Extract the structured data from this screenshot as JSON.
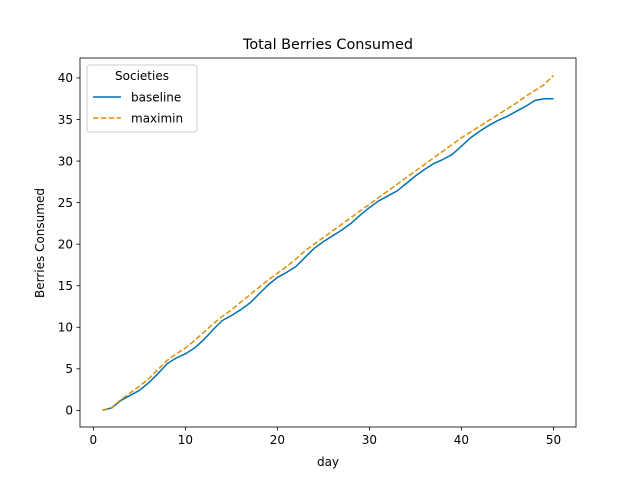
{
  "chart_data": {
    "type": "line",
    "title": "Total Berries Consumed",
    "xlabel": "day",
    "ylabel": "Berries Consumed",
    "xlim": [
      -1.45,
      52.45
    ],
    "ylim": [
      -2.0,
      42.4
    ],
    "x_ticks": [
      0,
      10,
      20,
      30,
      40,
      50
    ],
    "y_ticks": [
      0,
      5,
      10,
      15,
      20,
      25,
      30,
      35,
      40
    ],
    "grid": false,
    "legend": {
      "title": "Societies",
      "placement": "top-left"
    },
    "x": [
      1,
      2,
      3,
      4,
      5,
      6,
      7,
      8,
      9,
      10,
      11,
      12,
      13,
      14,
      15,
      16,
      17,
      18,
      19,
      20,
      21,
      22,
      23,
      24,
      25,
      26,
      27,
      28,
      29,
      30,
      31,
      32,
      33,
      34,
      35,
      36,
      37,
      38,
      39,
      40,
      41,
      42,
      43,
      44,
      45,
      46,
      47,
      48,
      49,
      50
    ],
    "series": [
      {
        "name": "baseline",
        "color": "#0072b2",
        "dash": "solid",
        "values": [
          0.0,
          0.3,
          1.2,
          1.8,
          2.4,
          3.3,
          4.4,
          5.6,
          6.3,
          6.8,
          7.5,
          8.5,
          9.7,
          10.8,
          11.4,
          12.1,
          12.9,
          14.0,
          15.1,
          16.0,
          16.6,
          17.3,
          18.4,
          19.5,
          20.3,
          21.0,
          21.7,
          22.5,
          23.5,
          24.4,
          25.2,
          25.8,
          26.4,
          27.3,
          28.2,
          29.0,
          29.7,
          30.2,
          30.8,
          31.8,
          32.8,
          33.6,
          34.3,
          34.9,
          35.4,
          36.0,
          36.6,
          37.3,
          37.5,
          37.5
        ]
      },
      {
        "name": "maximin",
        "color": "#de8f05",
        "dash": "dashed",
        "values": [
          0.0,
          0.35,
          1.3,
          2.1,
          2.9,
          3.8,
          4.9,
          6.0,
          6.8,
          7.5,
          8.4,
          9.4,
          10.4,
          11.3,
          12.1,
          13.0,
          13.9,
          14.8,
          15.7,
          16.5,
          17.3,
          18.2,
          19.2,
          20.0,
          20.8,
          21.6,
          22.4,
          23.2,
          24.0,
          24.8,
          25.6,
          26.4,
          27.2,
          28.0,
          28.8,
          29.6,
          30.4,
          31.2,
          32.0,
          32.8,
          33.5,
          34.2,
          34.9,
          35.6,
          36.3,
          37.0,
          37.8,
          38.5,
          39.2,
          40.3
        ]
      }
    ]
  }
}
